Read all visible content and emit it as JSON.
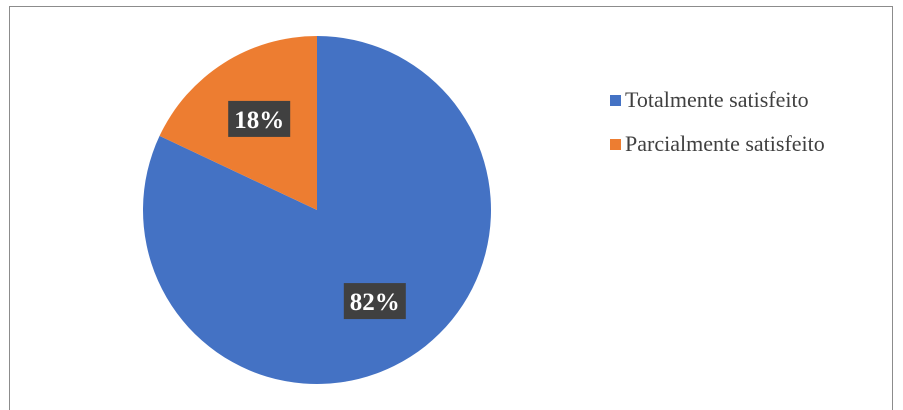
{
  "chart_data": {
    "type": "pie",
    "title": "",
    "slices": [
      {
        "label": "Totalmente satisfeito",
        "value": 82,
        "display": "82%",
        "color": "#4472C4"
      },
      {
        "label": "Parcialmente satisfeito",
        "value": 18,
        "display": "18%",
        "color": "#ED7D31"
      }
    ],
    "legend_position": "right",
    "data_label_style": "dark box with white bold text"
  }
}
